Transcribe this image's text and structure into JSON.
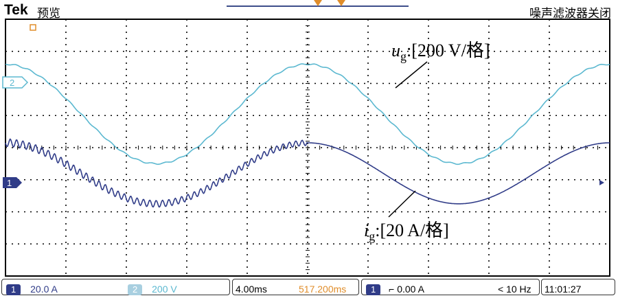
{
  "header": {
    "brand": "Tek",
    "mode": "预览",
    "status": "噪声滤波器关闭"
  },
  "annotations": {
    "ug_var": "u",
    "ug_sub": "g",
    "ug_scale": ":[200 V/格]",
    "ig_var": "i",
    "ig_sub": "g",
    "ig_scale": ":[20 A/格]"
  },
  "markers": {
    "ch2": "2",
    "ch1": "1"
  },
  "footer": {
    "ch1_num": "1",
    "ch1_scale": "20.0 A",
    "ch2_num": "2",
    "ch2_scale": "200 V",
    "timebase": "4.00ms",
    "position": "517.200ms",
    "trig_num": "1",
    "trig_level": "0.00 A",
    "freq": "< 10 Hz",
    "time": "11:01:27"
  },
  "colors": {
    "ug": "#5bb8d0",
    "ig": "#303c88",
    "accent": "#e08d2a"
  },
  "chart_data": {
    "type": "line",
    "xlabel": "",
    "ylabel": "",
    "x_divisions": 10,
    "y_divisions": 8,
    "x_per_div_ms": 4.0,
    "xlim_ms": [
      0,
      40
    ],
    "grid": true,
    "series": [
      {
        "name": "ug",
        "unit": "V",
        "volts_per_div": 200,
        "amplitude_div": 1.55,
        "center_div_from_top": 2.95,
        "period_ms": 20,
        "phase_peak_ms": 20,
        "ripple": "none"
      },
      {
        "name": "ig",
        "unit": "A",
        "amps_per_div": 20,
        "amplitude_div": 0.95,
        "center_div_from_top": 4.8,
        "period_ms": 20,
        "phase_peak_ms": 20,
        "ripple": "high-frequency ripple in first 20 ms"
      }
    ]
  }
}
